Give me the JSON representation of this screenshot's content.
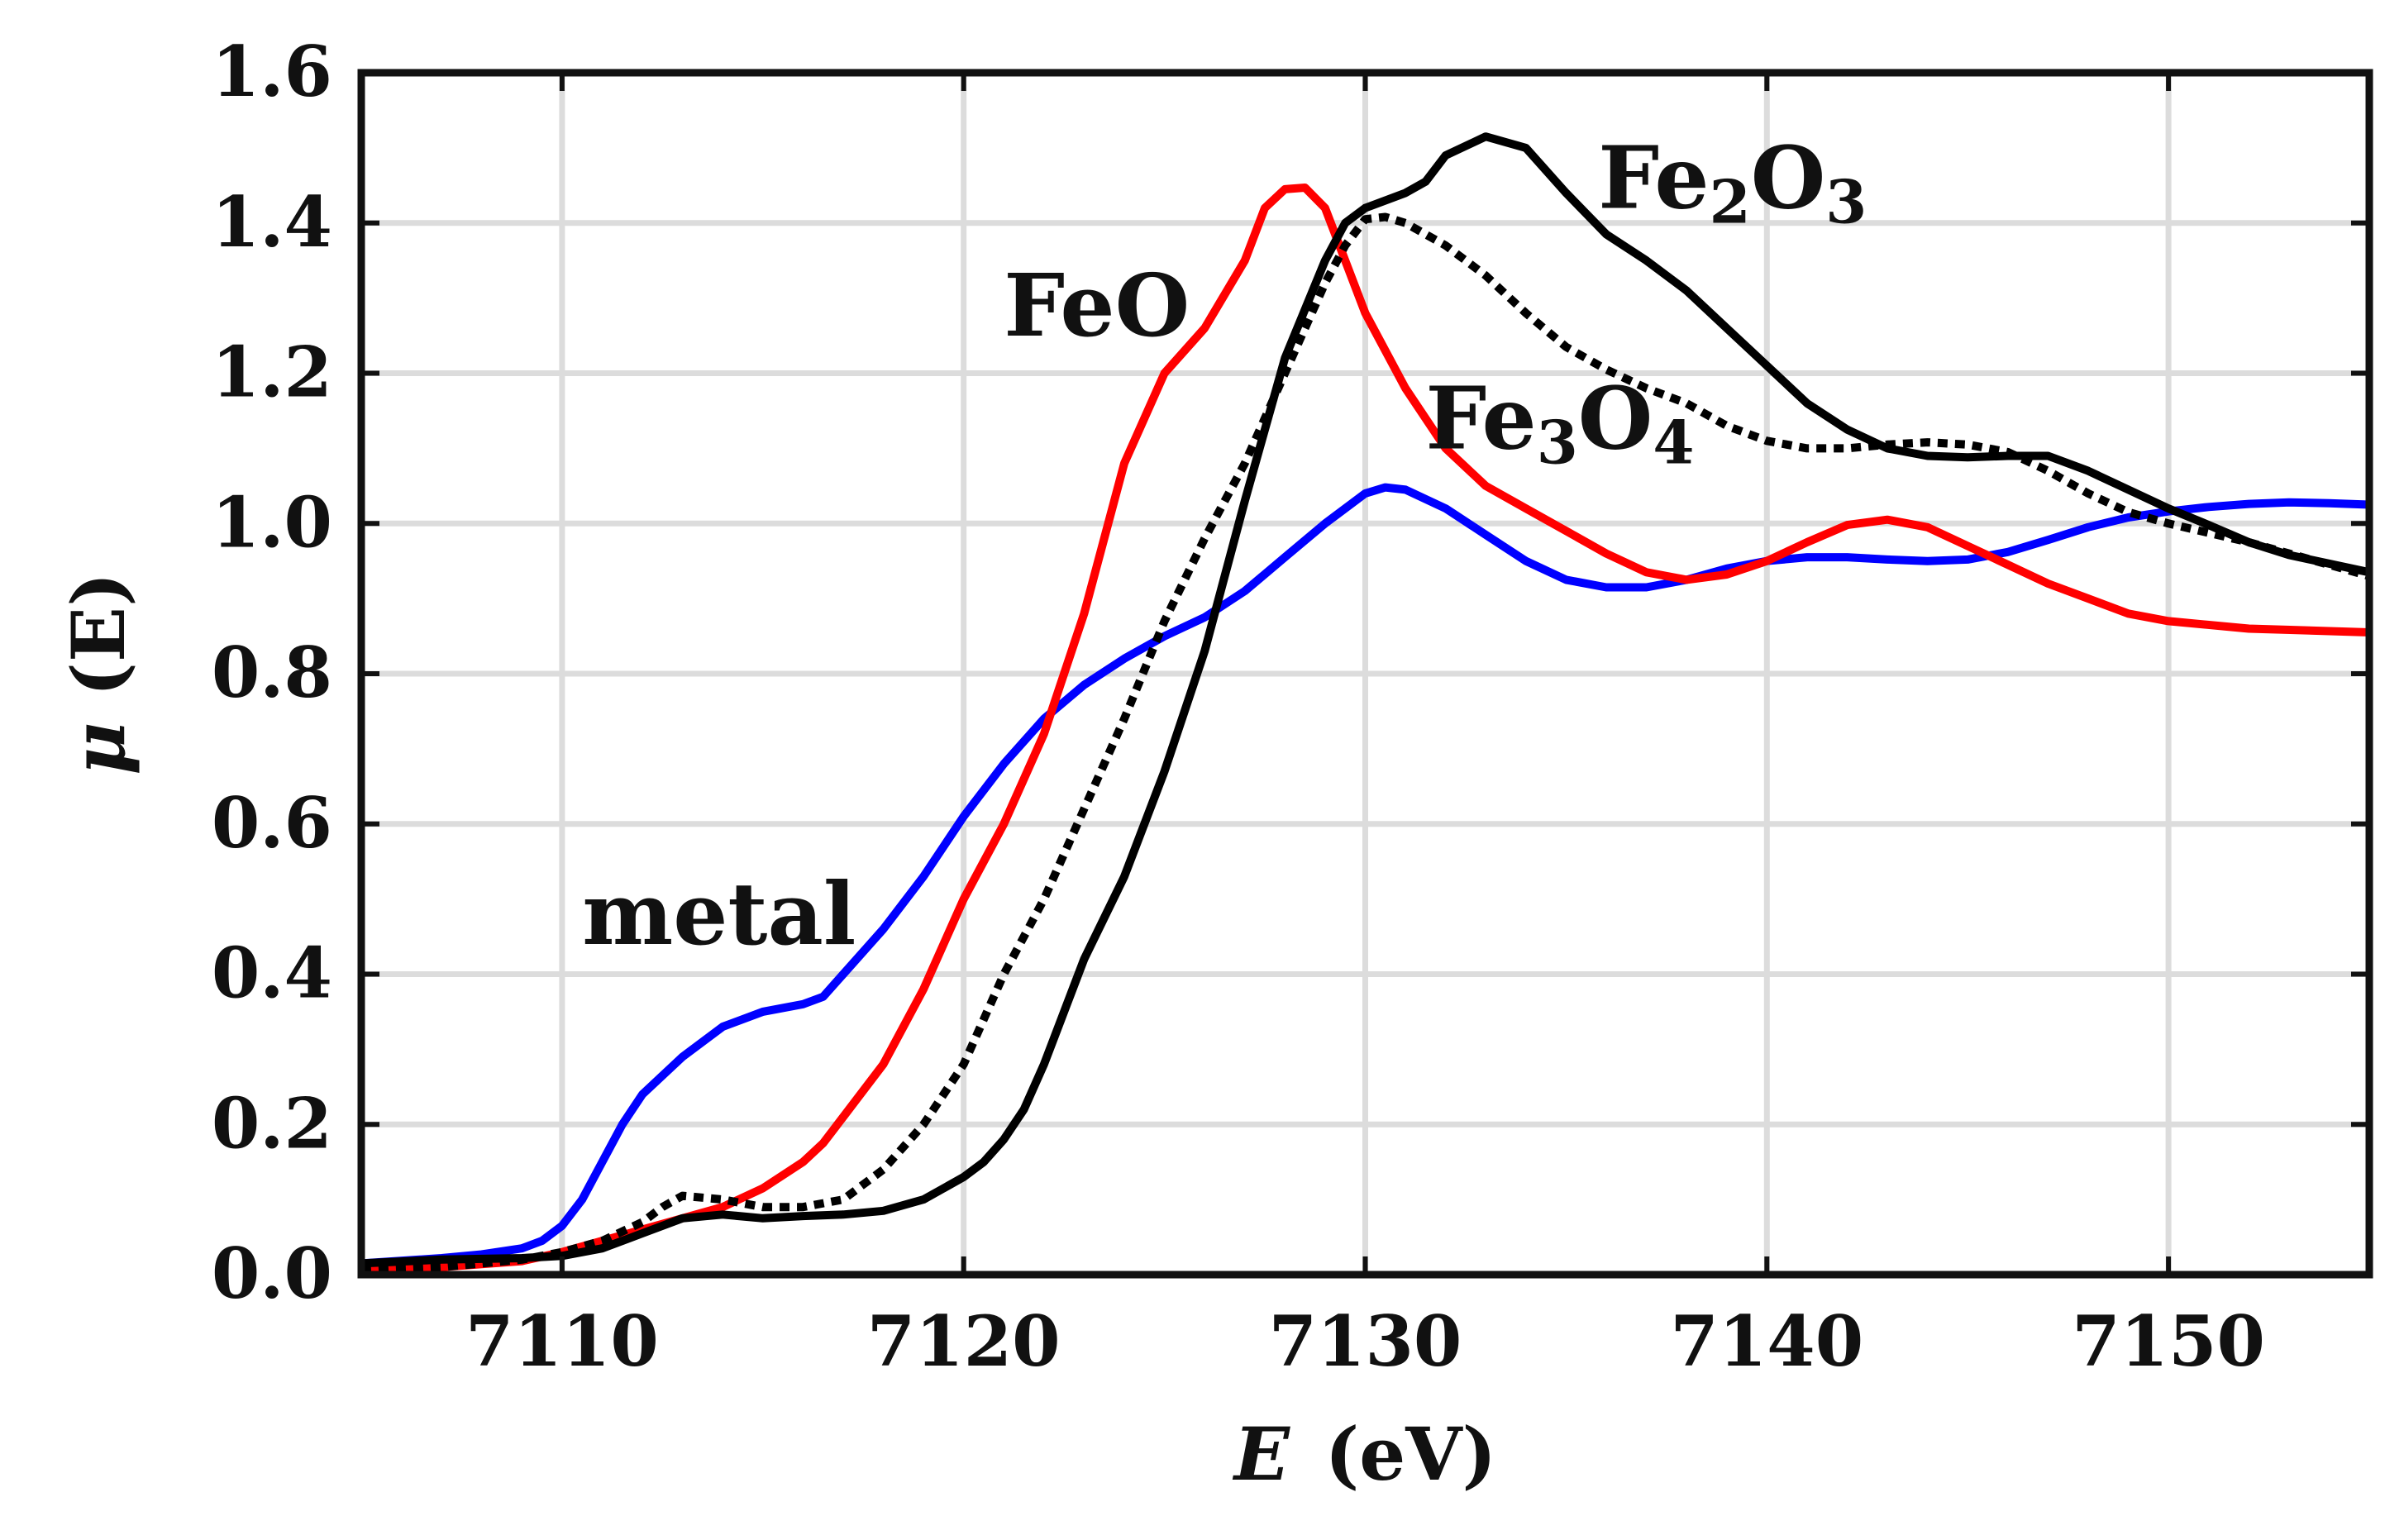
{
  "chart_data": {
    "type": "line",
    "title": "",
    "xlabel": {
      "symbol": "E",
      "unit": "(eV)"
    },
    "ylabel": {
      "symbol": "μ",
      "arg": "(E)"
    },
    "xlim": [
      7105,
      7155
    ],
    "ylim": [
      0.0,
      1.6
    ],
    "xticks": [
      7110,
      7120,
      7130,
      7140,
      7150
    ],
    "yticks": [
      0.0,
      0.2,
      0.4,
      0.6,
      0.8,
      1.0,
      1.2,
      1.4,
      1.6
    ],
    "xtick_labels": [
      "7110",
      "7120",
      "7130",
      "7140",
      "7150"
    ],
    "ytick_labels": [
      "0.0",
      "0.2",
      "0.4",
      "0.6",
      "0.8",
      "1.0",
      "1.2",
      "1.4",
      "1.6"
    ],
    "grid": true,
    "legend": "none",
    "series": [
      {
        "name": "metal",
        "color": "#0000ff",
        "dash": "solid",
        "points": [
          [
            7105,
            0.015
          ],
          [
            7107,
            0.022
          ],
          [
            7108,
            0.027
          ],
          [
            7109,
            0.035
          ],
          [
            7109.5,
            0.045
          ],
          [
            7110,
            0.065
          ],
          [
            7110.5,
            0.1
          ],
          [
            7111,
            0.15
          ],
          [
            7111.5,
            0.2
          ],
          [
            7112,
            0.24
          ],
          [
            7113,
            0.29
          ],
          [
            7114,
            0.33
          ],
          [
            7115,
            0.35
          ],
          [
            7116,
            0.36
          ],
          [
            7116.5,
            0.37
          ],
          [
            7117,
            0.4
          ],
          [
            7118,
            0.46
          ],
          [
            7119,
            0.53
          ],
          [
            7120,
            0.61
          ],
          [
            7121,
            0.68
          ],
          [
            7122,
            0.74
          ],
          [
            7123,
            0.785
          ],
          [
            7124,
            0.82
          ],
          [
            7125,
            0.85
          ],
          [
            7126,
            0.875
          ],
          [
            7127,
            0.91
          ],
          [
            7128,
            0.955
          ],
          [
            7129,
            1.0
          ],
          [
            7130,
            1.04
          ],
          [
            7130.5,
            1.048
          ],
          [
            7131,
            1.045
          ],
          [
            7132,
            1.02
          ],
          [
            7133,
            0.985
          ],
          [
            7134,
            0.95
          ],
          [
            7135,
            0.925
          ],
          [
            7136,
            0.915
          ],
          [
            7137,
            0.915
          ],
          [
            7138,
            0.925
          ],
          [
            7139,
            0.94
          ],
          [
            7140,
            0.95
          ],
          [
            7141,
            0.955
          ],
          [
            7142,
            0.955
          ],
          [
            7143,
            0.952
          ],
          [
            7144,
            0.95
          ],
          [
            7145,
            0.952
          ],
          [
            7146,
            0.962
          ],
          [
            7147,
            0.978
          ],
          [
            7148,
            0.995
          ],
          [
            7149,
            1.008
          ],
          [
            7150,
            1.016
          ],
          [
            7151,
            1.022
          ],
          [
            7152,
            1.026
          ],
          [
            7153,
            1.028
          ],
          [
            7154,
            1.027
          ],
          [
            7155,
            1.025
          ]
        ]
      },
      {
        "name": "FeO",
        "color": "#ff0000",
        "dash": "solid",
        "points": [
          [
            7105,
            0.005
          ],
          [
            7107,
            0.01
          ],
          [
            7109,
            0.018
          ],
          [
            7110,
            0.03
          ],
          [
            7111,
            0.045
          ],
          [
            7112,
            0.06
          ],
          [
            7113,
            0.075
          ],
          [
            7114,
            0.09
          ],
          [
            7115,
            0.115
          ],
          [
            7116,
            0.15
          ],
          [
            7116.5,
            0.175
          ],
          [
            7117,
            0.21
          ],
          [
            7118,
            0.28
          ],
          [
            7119,
            0.38
          ],
          [
            7120,
            0.5
          ],
          [
            7121,
            0.6
          ],
          [
            7122,
            0.72
          ],
          [
            7123,
            0.88
          ],
          [
            7124,
            1.08
          ],
          [
            7125,
            1.2
          ],
          [
            7126,
            1.26
          ],
          [
            7127,
            1.35
          ],
          [
            7127.5,
            1.42
          ],
          [
            7128,
            1.445
          ],
          [
            7128.5,
            1.447
          ],
          [
            7129,
            1.42
          ],
          [
            7129.5,
            1.35
          ],
          [
            7130,
            1.28
          ],
          [
            7131,
            1.18
          ],
          [
            7132,
            1.1
          ],
          [
            7133,
            1.05
          ],
          [
            7134,
            1.02
          ],
          [
            7135,
            0.99
          ],
          [
            7136,
            0.96
          ],
          [
            7137,
            0.935
          ],
          [
            7138,
            0.925
          ],
          [
            7139,
            0.932
          ],
          [
            7140,
            0.95
          ],
          [
            7141,
            0.975
          ],
          [
            7142,
            0.998
          ],
          [
            7143,
            1.005
          ],
          [
            7144,
            0.995
          ],
          [
            7145,
            0.97
          ],
          [
            7146,
            0.945
          ],
          [
            7147,
            0.92
          ],
          [
            7148,
            0.9
          ],
          [
            7149,
            0.88
          ],
          [
            7150,
            0.87
          ],
          [
            7152,
            0.86
          ],
          [
            7155,
            0.855
          ]
        ]
      },
      {
        "name": "Fe3O4",
        "color": "#000000",
        "dash": "dotted",
        "points": [
          [
            7105,
            0.005
          ],
          [
            7107,
            0.01
          ],
          [
            7109,
            0.02
          ],
          [
            7110,
            0.03
          ],
          [
            7111,
            0.045
          ],
          [
            7112,
            0.07
          ],
          [
            7112.5,
            0.09
          ],
          [
            7113,
            0.105
          ],
          [
            7114,
            0.1
          ],
          [
            7115,
            0.09
          ],
          [
            7116,
            0.09
          ],
          [
            7117,
            0.1
          ],
          [
            7118,
            0.14
          ],
          [
            7119,
            0.2
          ],
          [
            7120,
            0.28
          ],
          [
            7121,
            0.4
          ],
          [
            7122,
            0.5
          ],
          [
            7123,
            0.62
          ],
          [
            7124,
            0.74
          ],
          [
            7125,
            0.87
          ],
          [
            7126,
            0.98
          ],
          [
            7127,
            1.08
          ],
          [
            7128,
            1.2
          ],
          [
            7129,
            1.32
          ],
          [
            7129.5,
            1.37
          ],
          [
            7130,
            1.405
          ],
          [
            7130.5,
            1.408
          ],
          [
            7131,
            1.4
          ],
          [
            7132,
            1.37
          ],
          [
            7133,
            1.33
          ],
          [
            7134,
            1.28
          ],
          [
            7135,
            1.235
          ],
          [
            7136,
            1.205
          ],
          [
            7137,
            1.18
          ],
          [
            7138,
            1.16
          ],
          [
            7139,
            1.13
          ],
          [
            7140,
            1.11
          ],
          [
            7141,
            1.1
          ],
          [
            7142,
            1.1
          ],
          [
            7143,
            1.105
          ],
          [
            7144,
            1.108
          ],
          [
            7145,
            1.105
          ],
          [
            7146,
            1.095
          ],
          [
            7147,
            1.07
          ],
          [
            7148,
            1.04
          ],
          [
            7149,
            1.015
          ],
          [
            7150,
            1.0
          ],
          [
            7152,
            0.975
          ],
          [
            7153,
            0.96
          ],
          [
            7155,
            0.93
          ]
        ]
      },
      {
        "name": "Fe2O3",
        "color": "#000000",
        "dash": "solid",
        "points": [
          [
            7105,
            0.015
          ],
          [
            7107,
            0.02
          ],
          [
            7109,
            0.022
          ],
          [
            7110,
            0.025
          ],
          [
            7111,
            0.035
          ],
          [
            7112,
            0.055
          ],
          [
            7113,
            0.075
          ],
          [
            7114,
            0.08
          ],
          [
            7115,
            0.075
          ],
          [
            7116,
            0.078
          ],
          [
            7117,
            0.08
          ],
          [
            7118,
            0.085
          ],
          [
            7119,
            0.1
          ],
          [
            7120,
            0.13
          ],
          [
            7120.5,
            0.15
          ],
          [
            7121,
            0.18
          ],
          [
            7121.5,
            0.22
          ],
          [
            7122,
            0.28
          ],
          [
            7123,
            0.42
          ],
          [
            7124,
            0.53
          ],
          [
            7125,
            0.67
          ],
          [
            7126,
            0.83
          ],
          [
            7127,
            1.03
          ],
          [
            7128,
            1.22
          ],
          [
            7129,
            1.35
          ],
          [
            7129.5,
            1.4
          ],
          [
            7130,
            1.42
          ],
          [
            7131,
            1.44
          ],
          [
            7131.5,
            1.455
          ],
          [
            7132,
            1.49
          ],
          [
            7133,
            1.515
          ],
          [
            7134,
            1.5
          ],
          [
            7135,
            1.44
          ],
          [
            7136,
            1.385
          ],
          [
            7137,
            1.35
          ],
          [
            7138,
            1.31
          ],
          [
            7139,
            1.26
          ],
          [
            7140,
            1.21
          ],
          [
            7141,
            1.16
          ],
          [
            7142,
            1.125
          ],
          [
            7143,
            1.1
          ],
          [
            7144,
            1.09
          ],
          [
            7145,
            1.088
          ],
          [
            7146,
            1.09
          ],
          [
            7147,
            1.09
          ],
          [
            7148,
            1.07
          ],
          [
            7149,
            1.045
          ],
          [
            7150,
            1.02
          ],
          [
            7151,
            0.998
          ],
          [
            7152,
            0.975
          ],
          [
            7153,
            0.958
          ],
          [
            7155,
            0.935
          ]
        ]
      }
    ],
    "annotations": [
      {
        "name": "metal",
        "parts": [
          [
            "metal",
            false
          ]
        ],
        "x": 7110.5,
        "y": 0.44
      },
      {
        "name": "FeO",
        "parts": [
          [
            "FeO",
            false
          ]
        ],
        "x": 7121,
        "y": 1.25
      },
      {
        "name": "Fe2O3",
        "parts": [
          [
            "Fe",
            false
          ],
          [
            "2",
            true
          ],
          [
            "O",
            false
          ],
          [
            "3",
            true
          ]
        ],
        "x": 7135.8,
        "y": 1.42
      },
      {
        "name": "Fe3O4",
        "parts": [
          [
            "Fe",
            false
          ],
          [
            "3",
            true
          ],
          [
            "O",
            false
          ],
          [
            "4",
            true
          ]
        ],
        "x": 7131.5,
        "y": 1.1
      }
    ]
  }
}
